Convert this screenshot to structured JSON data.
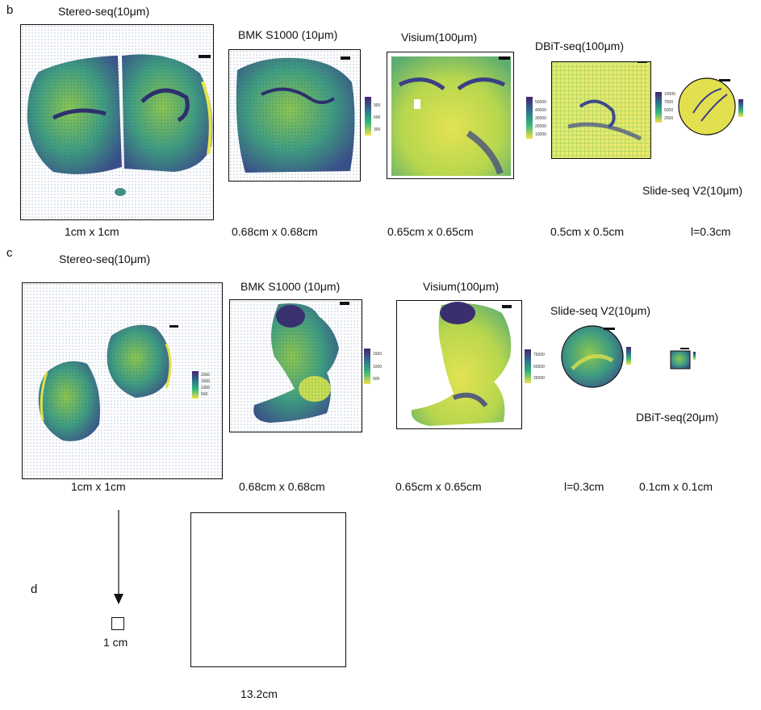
{
  "panels": {
    "b": {
      "letter": "b",
      "methods": [
        {
          "title": "Stereo-seq(10μm)",
          "size": "1cm x 1cm"
        },
        {
          "title": "BMK S1000 (10μm)",
          "size": "0.68cm x 0.68cm",
          "colorbar": [
            "900",
            "600",
            "300"
          ]
        },
        {
          "title": "Visium(100μm)",
          "size": "0.65cm x 0.65cm",
          "colorbar": [
            "50000",
            "40000",
            "30000",
            "20000",
            "10000"
          ]
        },
        {
          "title": "DBiT-seq(100μm)",
          "size": "0.5cm x 0.5cm",
          "colorbar": [
            "10000",
            "7500",
            "5000",
            "2500"
          ]
        },
        {
          "title": "Slide-seq V2(10μm)",
          "size": "l=0.3cm"
        }
      ]
    },
    "c": {
      "letter": "c",
      "methods": [
        {
          "title": "Stereo-seq(10μm)",
          "size": "1cm x 1cm",
          "colorbar": [
            "2000",
            "1500",
            "1000",
            "500"
          ]
        },
        {
          "title": "BMK S1000 (10μm)",
          "size": "0.68cm x 0.68cm",
          "colorbar": [
            "1500",
            "1000",
            "500"
          ]
        },
        {
          "title": "Visium(100μm)",
          "size": "0.65cm x 0.65cm",
          "colorbar": [
            "75000",
            "50000",
            "25000"
          ]
        },
        {
          "title": "Slide-seq V2(10μm)",
          "size": "l=0.3cm"
        },
        {
          "title": "DBiT-seq(20μm)",
          "size": "0.1cm x 0.1cm"
        }
      ]
    },
    "d": {
      "letter": "d",
      "small_label": "1 cm",
      "large_label": "13.2cm"
    }
  },
  "colors": {
    "viridis_dark": "#3b2a6b",
    "viridis_mid": "#2a8c8a",
    "viridis_light": "#bfe04a",
    "viridis_yellow": "#f3e84b"
  }
}
